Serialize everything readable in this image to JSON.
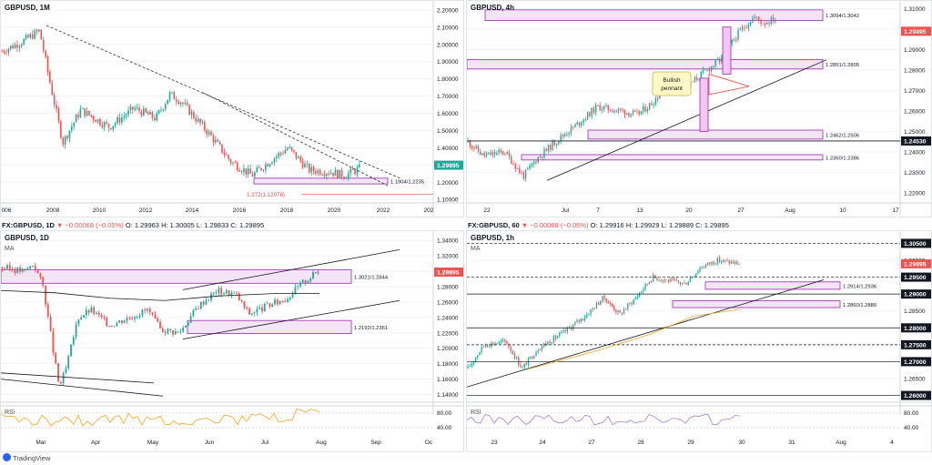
{
  "header_bl": {
    "symbol": "FX:GBPUSD, 1D",
    "change": "▼ −0.00068 (−0.05%)",
    "o": "O: 1.29963",
    "h": "H: 1.30005",
    "l": "L: 1.29833",
    "c": "C: 1.29895"
  },
  "header_br": {
    "symbol": "FX:GBPUSD, 60",
    "change": "▼ −0.00068 (−0.05%)",
    "o": "O: 1.29916",
    "h": "H: 1.29929",
    "l": "L: 1.29889",
    "c": "C: 1.29895"
  },
  "branding": "TradingView",
  "colors": {
    "up": "#26a69a",
    "down": "#ef5350",
    "zone_fill": "#f3e5f5",
    "zone_stroke": "#9c27b0",
    "price_tag": "#ef5350",
    "monthly_tag": "#26a69a",
    "ma": "#f5a623",
    "rsi": "#f5a623"
  },
  "chart_data": [
    {
      "id": "monthly",
      "type": "candlestick",
      "title": "GBPUSD, 1M",
      "last_price": "1.29895",
      "x_ticks": [
        "006",
        "2008",
        "2010",
        "2012",
        "2014",
        "2016",
        "2018",
        "2020",
        "2022",
        "202"
      ],
      "y_ticks": [
        "2.20000",
        "2.10000",
        "2.00000",
        "1.90000",
        "1.80000",
        "1.70000",
        "1.60000",
        "1.50000",
        "1.40000",
        "1.30000",
        "1.20000",
        "1.10000"
      ],
      "ylim": [
        1.08,
        2.21
      ],
      "zones": [
        {
          "label": "1.1904/1.2235",
          "low": 1.1904,
          "high": 1.2235
        }
      ],
      "annotations": [
        {
          "label": "1.272(1.12978)",
          "value": 1.12978
        }
      ],
      "trendlines": "descending dashed resistance lines from 2008 and 2014 highs"
    },
    {
      "id": "h4",
      "type": "candlestick",
      "title": "GBPUSD, 4h",
      "last_price": "1.29895",
      "x_ticks": [
        "22",
        "Jul",
        "7",
        "13",
        "20",
        "27",
        "Aug",
        "10",
        "17"
      ],
      "y_ticks": [
        "1.31000",
        "1.30000",
        "1.29000",
        "1.28000",
        "1.27000",
        "1.26000",
        "1.25000",
        "1.24000",
        "1.23000",
        "1.22000"
      ],
      "ylim": [
        1.215,
        1.312
      ],
      "zones": [
        {
          "label": "1.3094/1.3042",
          "low": 1.3042,
          "high": 1.3094
        },
        {
          "label": "1.2851/1.2805",
          "low": 1.2805,
          "high": 1.2851
        },
        {
          "label": "1.2462/1.2506",
          "low": 1.2462,
          "high": 1.2506
        },
        {
          "label": "1.2360/1.2386",
          "low": 1.236,
          "high": 1.2386
        }
      ],
      "levels": [
        {
          "label": "1.24530",
          "value": 1.2453
        }
      ],
      "annotations": [
        {
          "label": "Bullish pennant"
        }
      ]
    },
    {
      "id": "daily",
      "type": "candlestick",
      "title": "GBPUSD, 1D",
      "indicator": "MA",
      "last_price": "1.29895",
      "x_ticks": [
        "Mar",
        "Apr",
        "May",
        "Jun",
        "Jul",
        "Aug",
        "Sep",
        "Oc"
      ],
      "y_ticks": [
        "1.34000",
        "1.32000",
        "1.30000",
        "1.28000",
        "1.26000",
        "1.24000",
        "1.22000",
        "1.20000",
        "1.18000",
        "1.16000",
        "1.14000"
      ],
      "ylim": [
        1.13,
        1.345
      ],
      "zones": [
        {
          "label": "1.3021/1.2844",
          "low": 1.2844,
          "high": 1.3021
        },
        {
          "label": "1.2192/1.2361",
          "low": 1.2192,
          "high": 1.2361
        }
      ],
      "rsi": {
        "label": "RSI",
        "ticks": [
          "80.00",
          "40.00"
        ]
      }
    },
    {
      "id": "hourly",
      "type": "candlestick",
      "title": "GBPUSD, 1h",
      "indicator": "MA",
      "last_price": "1.29895",
      "x_ticks": [
        "23",
        "24",
        "27",
        "28",
        "29",
        "30",
        "31",
        "Aug",
        "4"
      ],
      "y_ticks": [
        "1.30500",
        "1.30000",
        "1.29500",
        "1.29000",
        "1.28500",
        "1.28000",
        "1.27500",
        "1.27000",
        "1.26500",
        "1.26000"
      ],
      "ylim": [
        1.258,
        1.307
      ],
      "zones": [
        {
          "label": "1.2914/1.2936",
          "low": 1.2914,
          "high": 1.2936
        },
        {
          "label": "1.2860/1.2880",
          "low": 1.286,
          "high": 1.288
        }
      ],
      "levels": [
        {
          "label": "1.30500",
          "value": 1.305
        },
        {
          "label": "1.29500",
          "value": 1.295
        },
        {
          "label": "1.29000",
          "value": 1.29
        },
        {
          "label": "1.28000",
          "value": 1.28
        },
        {
          "label": "1.27500",
          "value": 1.275
        },
        {
          "label": "1.27000",
          "value": 1.27
        },
        {
          "label": "1.26000",
          "value": 1.26
        }
      ],
      "rsi": {
        "label": "RSI",
        "ticks": [
          "80.00",
          "40.00"
        ]
      }
    }
  ]
}
